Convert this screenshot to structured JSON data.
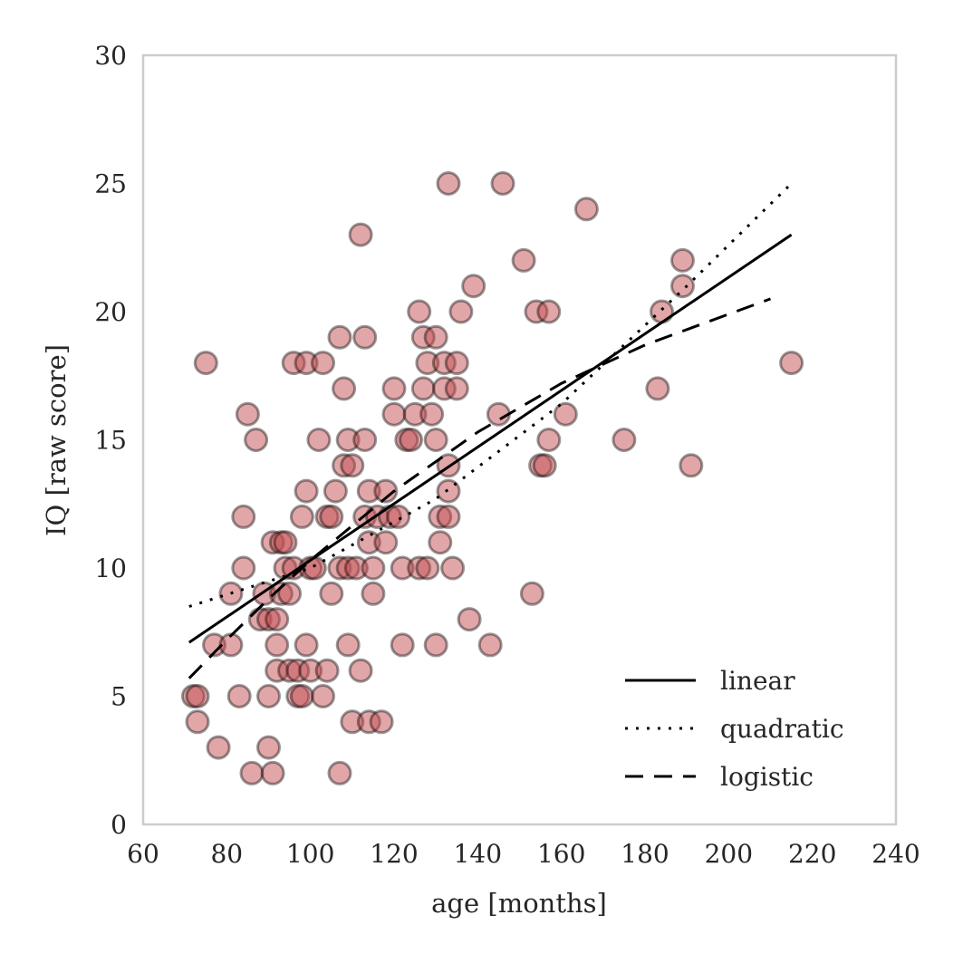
{
  "chart_data": {
    "type": "scatter",
    "title": "",
    "xlabel": "age [months]",
    "ylabel": "IQ [raw score]",
    "xlim": [
      60,
      240
    ],
    "ylim": [
      0,
      30
    ],
    "xticks": [
      "60",
      "80",
      "100",
      "120",
      "140",
      "160",
      "180",
      "200",
      "220",
      "240"
    ],
    "yticks": [
      "0",
      "5",
      "10",
      "15",
      "20",
      "25",
      "30"
    ],
    "grid": false,
    "legend_position": "bottom-right",
    "colors": {
      "point_fill": "#c44e52",
      "point_edge": "#000000",
      "line": "#000000",
      "frame": "#cccccc"
    },
    "series": [
      {
        "type": "scatter",
        "points": [
          [
            72,
            5
          ],
          [
            73,
            4
          ],
          [
            73,
            5
          ],
          [
            75,
            18
          ],
          [
            77,
            7
          ],
          [
            78,
            3
          ],
          [
            81,
            9
          ],
          [
            81,
            7
          ],
          [
            83,
            5
          ],
          [
            84,
            10
          ],
          [
            84,
            12
          ],
          [
            85,
            16
          ],
          [
            86,
            2
          ],
          [
            87,
            15
          ],
          [
            88,
            8
          ],
          [
            89,
            9
          ],
          [
            90,
            8
          ],
          [
            90,
            5
          ],
          [
            90,
            3
          ],
          [
            91,
            11
          ],
          [
            91,
            2
          ],
          [
            92,
            8
          ],
          [
            92,
            7
          ],
          [
            92,
            6
          ],
          [
            93,
            9
          ],
          [
            93,
            11
          ],
          [
            94,
            10
          ],
          [
            94,
            11
          ],
          [
            95,
            9
          ],
          [
            95,
            6
          ],
          [
            96,
            18
          ],
          [
            96,
            10
          ],
          [
            97,
            5
          ],
          [
            97,
            6
          ],
          [
            98,
            5
          ],
          [
            98,
            12
          ],
          [
            99,
            18
          ],
          [
            99,
            13
          ],
          [
            99,
            7
          ],
          [
            100,
            10
          ],
          [
            100,
            6
          ],
          [
            101,
            10
          ],
          [
            102,
            15
          ],
          [
            103,
            18
          ],
          [
            103,
            5
          ],
          [
            104,
            12
          ],
          [
            104,
            6
          ],
          [
            105,
            9
          ],
          [
            105,
            12
          ],
          [
            106,
            13
          ],
          [
            107,
            10
          ],
          [
            107,
            19
          ],
          [
            107,
            2
          ],
          [
            108,
            17
          ],
          [
            108,
            14
          ],
          [
            109,
            10
          ],
          [
            109,
            15
          ],
          [
            109,
            7
          ],
          [
            110,
            4
          ],
          [
            110,
            14
          ],
          [
            111,
            10
          ],
          [
            112,
            23
          ],
          [
            112,
            6
          ],
          [
            113,
            19
          ],
          [
            113,
            15
          ],
          [
            113,
            12
          ],
          [
            114,
            13
          ],
          [
            114,
            11
          ],
          [
            114,
            4
          ],
          [
            115,
            10
          ],
          [
            115,
            9
          ],
          [
            116,
            12
          ],
          [
            117,
            4
          ],
          [
            118,
            11
          ],
          [
            118,
            13
          ],
          [
            119,
            12
          ],
          [
            120,
            17
          ],
          [
            120,
            16
          ],
          [
            121,
            12
          ],
          [
            122,
            7
          ],
          [
            122,
            10
          ],
          [
            123,
            15
          ],
          [
            124,
            15
          ],
          [
            125,
            16
          ],
          [
            126,
            20
          ],
          [
            126,
            10
          ],
          [
            127,
            17
          ],
          [
            127,
            19
          ],
          [
            128,
            18
          ],
          [
            128,
            10
          ],
          [
            129,
            16
          ],
          [
            130,
            15
          ],
          [
            130,
            19
          ],
          [
            130,
            7
          ],
          [
            131,
            12
          ],
          [
            131,
            11
          ],
          [
            132,
            17
          ],
          [
            132,
            18
          ],
          [
            133,
            25
          ],
          [
            133,
            13
          ],
          [
            133,
            14
          ],
          [
            133,
            12
          ],
          [
            134,
            10
          ],
          [
            135,
            18
          ],
          [
            135,
            17
          ],
          [
            136,
            20
          ],
          [
            138,
            8
          ],
          [
            139,
            21
          ],
          [
            143,
            7
          ],
          [
            145,
            16
          ],
          [
            146,
            25
          ],
          [
            151,
            22
          ],
          [
            153,
            9
          ],
          [
            154,
            20
          ],
          [
            155,
            14
          ],
          [
            156,
            14
          ],
          [
            157,
            20
          ],
          [
            157,
            15
          ],
          [
            161,
            16
          ],
          [
            166,
            24
          ],
          [
            175,
            15
          ],
          [
            183,
            17
          ],
          [
            184,
            20
          ],
          [
            189,
            21
          ],
          [
            189,
            22
          ],
          [
            191,
            14
          ],
          [
            215,
            18
          ]
        ]
      },
      {
        "name": "linear",
        "type": "line",
        "style": "solid",
        "x": [
          71,
          215
        ],
        "y": [
          7.1,
          23.0
        ]
      },
      {
        "name": "quadratic",
        "type": "line",
        "style": "dotted",
        "x": [
          71,
          100,
          130,
          160,
          190,
          215
        ],
        "y": [
          8.5,
          10.0,
          12.7,
          16.4,
          21.0,
          25.0
        ]
      },
      {
        "name": "logistic",
        "type": "line",
        "style": "dashed",
        "x": [
          71,
          80,
          90,
          100,
          120,
          140,
          160,
          180,
          200,
          210
        ],
        "y": [
          5.7,
          7.2,
          8.8,
          10.3,
          13.0,
          15.3,
          17.2,
          18.7,
          19.9,
          20.5
        ]
      }
    ],
    "legend": [
      "linear",
      "quadratic",
      "logistic"
    ]
  }
}
